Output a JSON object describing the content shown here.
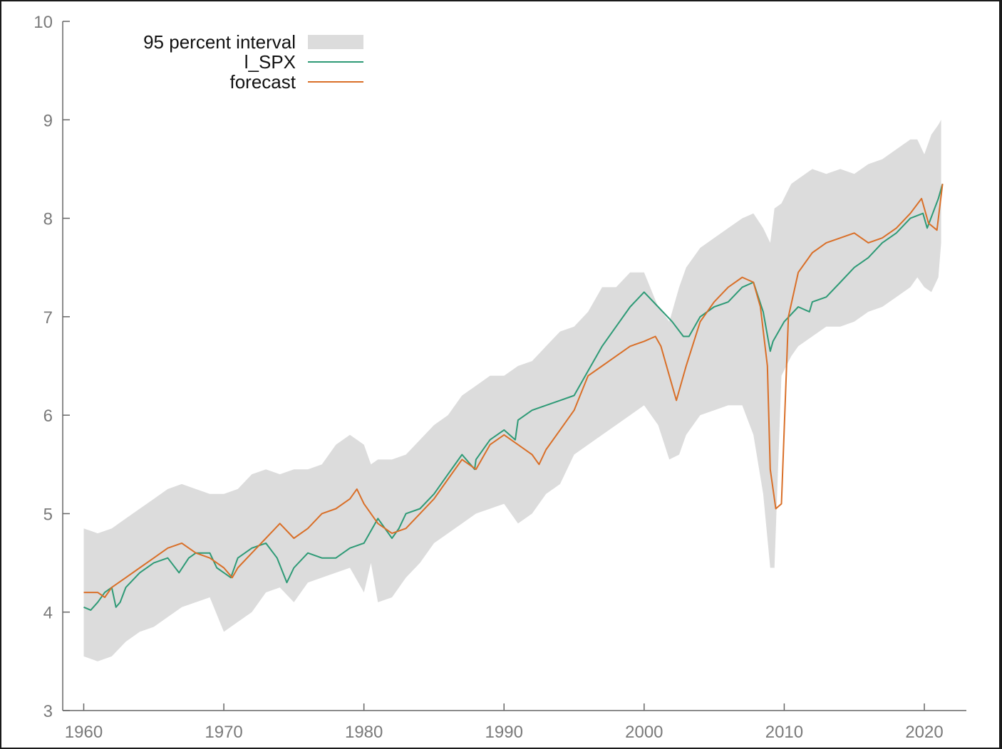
{
  "chart_data": {
    "type": "line",
    "title": "",
    "xlabel": "",
    "ylabel": "",
    "xlim": [
      1958.5,
      2023
    ],
    "ylim": [
      3,
      10
    ],
    "x_ticks": [
      1960,
      1970,
      1980,
      1990,
      2000,
      2010,
      2020
    ],
    "y_ticks": [
      3,
      4,
      5,
      6,
      7,
      8,
      9,
      10
    ],
    "x_tick_labels": [
      "1960",
      "1970",
      "1980",
      "1990",
      "2000",
      "2010",
      "2020"
    ],
    "y_tick_labels": [
      "3",
      "4",
      "5",
      "6",
      "7",
      "8",
      "9",
      "10"
    ],
    "grid": false,
    "legend_position": "top-left",
    "legend": [
      {
        "label": "95 percent interval",
        "kind": "band",
        "color": "#dcdcdc"
      },
      {
        "label": "l_SPX",
        "kind": "line",
        "color": "#2e9a76"
      },
      {
        "label": "forecast",
        "kind": "line",
        "color": "#d96f28"
      }
    ],
    "interval_band": {
      "name": "95 percent interval",
      "color": "#dcdcdc",
      "x": [
        1960,
        1961,
        1962,
        1963,
        1964,
        1965,
        1966,
        1967,
        1968,
        1969,
        1970,
        1971,
        1972,
        1973,
        1974,
        1975,
        1976,
        1977,
        1978,
        1979,
        1980,
        1980.5,
        1981,
        1982,
        1983,
        1984,
        1985,
        1986,
        1987,
        1988,
        1989,
        1990,
        1991,
        1992,
        1993,
        1994,
        1995,
        1996,
        1997,
        1998,
        1999,
        2000,
        2001,
        2001.8,
        2002.5,
        2003,
        2004,
        2005,
        2006,
        2007,
        2007.8,
        2008.5,
        2009,
        2009.3,
        2009.8,
        2010.5,
        2011,
        2012,
        2013,
        2014,
        2015,
        2016,
        2017,
        2018,
        2019,
        2019.5,
        2020,
        2020.5,
        2021,
        2021.2
      ],
      "lower": [
        3.55,
        3.5,
        3.55,
        3.7,
        3.8,
        3.85,
        3.95,
        4.05,
        4.1,
        4.15,
        3.8,
        3.9,
        4.0,
        4.2,
        4.25,
        4.1,
        4.3,
        4.35,
        4.4,
        4.45,
        4.2,
        4.5,
        4.1,
        4.15,
        4.35,
        4.5,
        4.7,
        4.8,
        4.9,
        5.0,
        5.05,
        5.1,
        4.9,
        5.0,
        5.2,
        5.3,
        5.6,
        5.7,
        5.8,
        5.9,
        6.0,
        6.1,
        5.9,
        5.55,
        5.6,
        5.8,
        6.0,
        6.05,
        6.1,
        6.1,
        5.8,
        5.2,
        4.45,
        4.45,
        6.4,
        6.6,
        6.7,
        6.8,
        6.9,
        6.9,
        6.95,
        7.05,
        7.1,
        7.2,
        7.3,
        7.4,
        7.3,
        7.25,
        7.4,
        7.75
      ],
      "upper": [
        4.85,
        4.8,
        4.85,
        4.95,
        5.05,
        5.15,
        5.25,
        5.3,
        5.25,
        5.2,
        5.2,
        5.25,
        5.4,
        5.45,
        5.4,
        5.45,
        5.45,
        5.5,
        5.7,
        5.8,
        5.7,
        5.5,
        5.55,
        5.55,
        5.6,
        5.75,
        5.9,
        6.0,
        6.2,
        6.3,
        6.4,
        6.4,
        6.5,
        6.55,
        6.7,
        6.85,
        6.9,
        7.05,
        7.3,
        7.3,
        7.45,
        7.45,
        7.1,
        6.95,
        7.3,
        7.5,
        7.7,
        7.8,
        7.9,
        8.0,
        8.05,
        7.9,
        7.75,
        8.1,
        8.15,
        8.35,
        8.4,
        8.5,
        8.45,
        8.5,
        8.45,
        8.55,
        8.6,
        8.7,
        8.8,
        8.8,
        8.65,
        8.85,
        8.95,
        9.0
      ]
    },
    "series": [
      {
        "name": "l_SPX",
        "color": "#2e9a76",
        "x": [
          1960,
          1960.5,
          1961,
          1961.5,
          1962,
          1962.3,
          1962.6,
          1963,
          1964,
          1965,
          1966,
          1966.8,
          1967.5,
          1968,
          1969,
          1969.5,
          1970,
          1970.5,
          1971,
          1972,
          1973,
          1973.8,
          1974.5,
          1975,
          1976,
          1977,
          1978,
          1979,
          1980,
          1981,
          1981.5,
          1982,
          1982.5,
          1983,
          1984,
          1985,
          1986,
          1987,
          1987.9,
          1988,
          1989,
          1990,
          1990.8,
          1991,
          1992,
          1993,
          1994,
          1995,
          1996,
          1997,
          1998,
          1999,
          2000,
          2001,
          2002,
          2002.8,
          2003.2,
          2004,
          2005,
          2006,
          2007,
          2007.8,
          2008.5,
          2009,
          2009.2,
          2010,
          2011,
          2011.8,
          2012,
          2013,
          2014,
          2015,
          2016,
          2017,
          2018,
          2019,
          2019.9,
          2020.2,
          2021,
          2021.3
        ],
        "values": [
          4.05,
          4.02,
          4.1,
          4.2,
          4.25,
          4.05,
          4.1,
          4.25,
          4.4,
          4.5,
          4.55,
          4.4,
          4.55,
          4.6,
          4.6,
          4.45,
          4.4,
          4.35,
          4.55,
          4.65,
          4.7,
          4.55,
          4.3,
          4.45,
          4.6,
          4.55,
          4.55,
          4.65,
          4.7,
          4.95,
          4.85,
          4.75,
          4.85,
          5.0,
          5.05,
          5.2,
          5.4,
          5.6,
          5.45,
          5.55,
          5.75,
          5.85,
          5.75,
          5.95,
          6.05,
          6.1,
          6.15,
          6.2,
          6.45,
          6.7,
          6.9,
          7.1,
          7.25,
          7.1,
          6.95,
          6.8,
          6.8,
          7.0,
          7.1,
          7.15,
          7.3,
          7.35,
          7.05,
          6.65,
          6.75,
          6.95,
          7.1,
          7.05,
          7.15,
          7.2,
          7.35,
          7.5,
          7.6,
          7.75,
          7.85,
          8.0,
          8.05,
          7.9,
          8.2,
          8.35
        ]
      },
      {
        "name": "forecast",
        "color": "#d96f28",
        "x": [
          1960,
          1961,
          1961.5,
          1962,
          1963,
          1964,
          1965,
          1966,
          1967,
          1968,
          1969,
          1970,
          1970.6,
          1971,
          1972,
          1973,
          1974,
          1975,
          1976,
          1977,
          1978,
          1979,
          1979.5,
          1980,
          1980.5,
          1981,
          1981.5,
          1982,
          1983,
          1984,
          1985,
          1986,
          1987,
          1988,
          1989,
          1990,
          1991,
          1992,
          1992.5,
          1993,
          1994,
          1995,
          1996,
          1997,
          1998,
          1999,
          2000,
          2000.8,
          2001.2,
          2001.8,
          2002.3,
          2003,
          2004,
          2005,
          2006,
          2007,
          2007.8,
          2008.3,
          2008.8,
          2009,
          2009.4,
          2009.8,
          2010.3,
          2011,
          2012,
          2013,
          2014,
          2015,
          2016,
          2017,
          2018,
          2019,
          2019.8,
          2020.3,
          2020.9,
          2021.3
        ],
        "values": [
          4.2,
          4.2,
          4.15,
          4.25,
          4.35,
          4.45,
          4.55,
          4.65,
          4.7,
          4.6,
          4.55,
          4.45,
          4.35,
          4.45,
          4.6,
          4.75,
          4.9,
          4.75,
          4.85,
          5.0,
          5.05,
          5.15,
          5.25,
          5.1,
          5.0,
          4.9,
          4.85,
          4.8,
          4.85,
          5.0,
          5.15,
          5.35,
          5.55,
          5.45,
          5.7,
          5.8,
          5.7,
          5.6,
          5.5,
          5.65,
          5.85,
          6.05,
          6.4,
          6.5,
          6.6,
          6.7,
          6.75,
          6.8,
          6.7,
          6.4,
          6.15,
          6.5,
          6.95,
          7.15,
          7.3,
          7.4,
          7.35,
          7.1,
          6.5,
          5.45,
          5.05,
          5.1,
          7.0,
          7.45,
          7.65,
          7.75,
          7.8,
          7.85,
          7.75,
          7.8,
          7.9,
          8.05,
          8.2,
          7.95,
          7.88,
          8.35
        ]
      }
    ]
  }
}
